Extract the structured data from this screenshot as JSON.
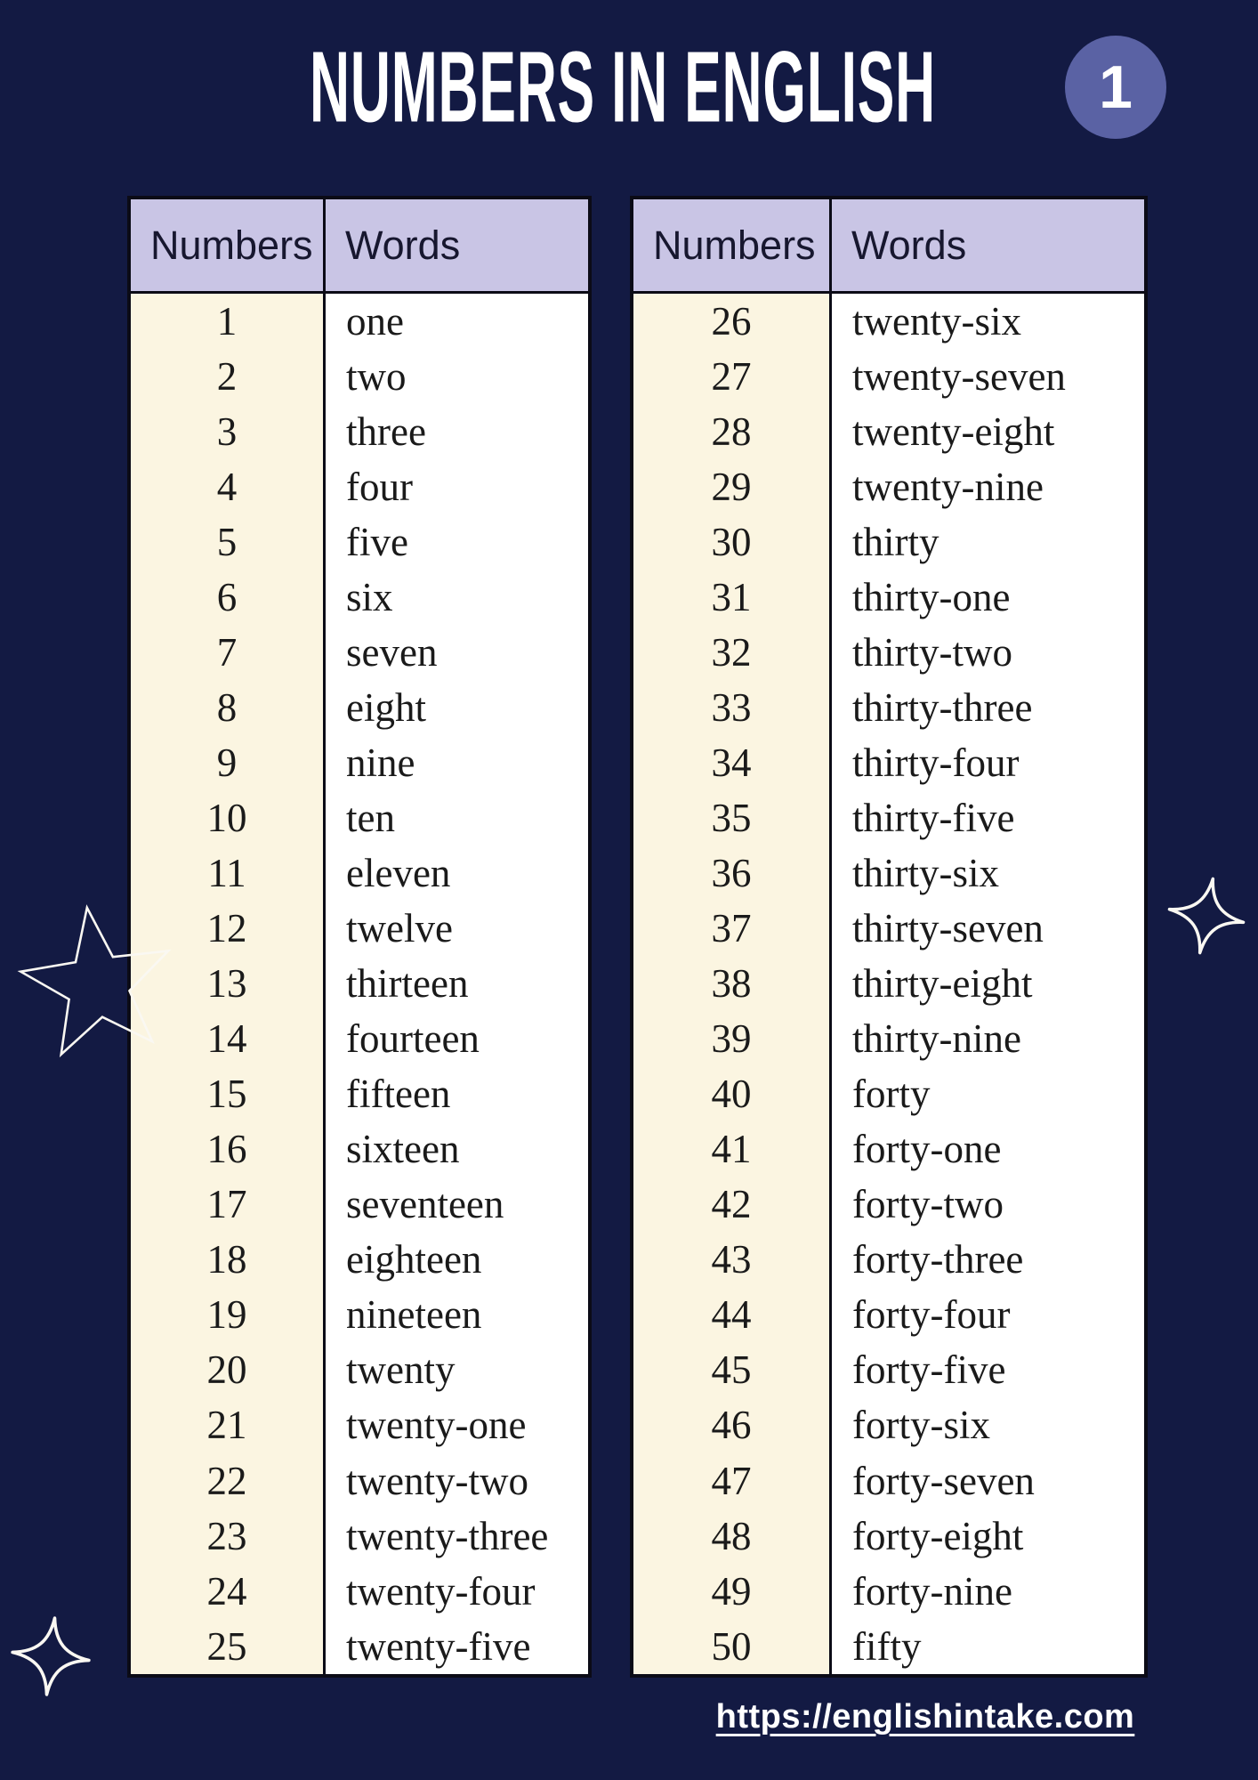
{
  "title": "NUMBERS IN ENGLISH",
  "badge": {
    "label": "1"
  },
  "tables": [
    {
      "headers": [
        "Numbers",
        "Words"
      ],
      "rows": [
        {
          "number": "1",
          "word": "one"
        },
        {
          "number": "2",
          "word": "two"
        },
        {
          "number": "3",
          "word": "three"
        },
        {
          "number": "4",
          "word": "four"
        },
        {
          "number": "5",
          "word": "five"
        },
        {
          "number": "6",
          "word": "six"
        },
        {
          "number": "7",
          "word": "seven"
        },
        {
          "number": "8",
          "word": "eight"
        },
        {
          "number": "9",
          "word": "nine"
        },
        {
          "number": "10",
          "word": "ten"
        },
        {
          "number": "11",
          "word": "eleven"
        },
        {
          "number": "12",
          "word": "twelve"
        },
        {
          "number": "13",
          "word": "thirteen"
        },
        {
          "number": "14",
          "word": "fourteen"
        },
        {
          "number": "15",
          "word": "fifteen"
        },
        {
          "number": "16",
          "word": "sixteen"
        },
        {
          "number": "17",
          "word": "seventeen"
        },
        {
          "number": "18",
          "word": "eighteen"
        },
        {
          "number": "19",
          "word": "nineteen"
        },
        {
          "number": "20",
          "word": "twenty"
        },
        {
          "number": "21",
          "word": "twenty-one"
        },
        {
          "number": "22",
          "word": "twenty-two"
        },
        {
          "number": "23",
          "word": "twenty-three"
        },
        {
          "number": "24",
          "word": "twenty-four"
        },
        {
          "number": "25",
          "word": "twenty-five"
        }
      ]
    },
    {
      "headers": [
        "Numbers",
        "Words"
      ],
      "rows": [
        {
          "number": "26",
          "word": "twenty-six"
        },
        {
          "number": "27",
          "word": "twenty-seven"
        },
        {
          "number": "28",
          "word": "twenty-eight"
        },
        {
          "number": "29",
          "word": "twenty-nine"
        },
        {
          "number": "30",
          "word": "thirty"
        },
        {
          "number": "31",
          "word": "thirty-one"
        },
        {
          "number": "32",
          "word": "thirty-two"
        },
        {
          "number": "33",
          "word": "thirty-three"
        },
        {
          "number": "34",
          "word": "thirty-four"
        },
        {
          "number": "35",
          "word": "thirty-five"
        },
        {
          "number": "36",
          "word": "thirty-six"
        },
        {
          "number": "37",
          "word": "thirty-seven"
        },
        {
          "number": "38",
          "word": "thirty-eight"
        },
        {
          "number": "39",
          "word": "thirty-nine"
        },
        {
          "number": "40",
          "word": "forty"
        },
        {
          "number": "41",
          "word": "forty-one"
        },
        {
          "number": "42",
          "word": "forty-two"
        },
        {
          "number": "43",
          "word": "forty-three"
        },
        {
          "number": "44",
          "word": "forty-four"
        },
        {
          "number": "45",
          "word": "forty-five"
        },
        {
          "number": "46",
          "word": "forty-six"
        },
        {
          "number": "47",
          "word": "forty-seven"
        },
        {
          "number": "48",
          "word": "forty-eight"
        },
        {
          "number": "49",
          "word": "forty-nine"
        },
        {
          "number": "50",
          "word": "fifty"
        }
      ]
    }
  ],
  "footer": {
    "url": "https://englishintake.com"
  },
  "icons": [
    "five-point-star-outline-icon",
    "four-point-sparkle-icon",
    "four-point-sparkle-icon"
  ],
  "colors": {
    "background": "#131a43",
    "table_header_bg": "#c9c5e5",
    "numbers_column_bg": "#fbf5e1",
    "words_column_bg": "#ffffff",
    "badge_bg": "#5a62a4",
    "border": "#0b0b16",
    "title_text": "#ffffff",
    "cell_text": "#1a1a1a",
    "decoration_stroke": "#faf8f2"
  }
}
